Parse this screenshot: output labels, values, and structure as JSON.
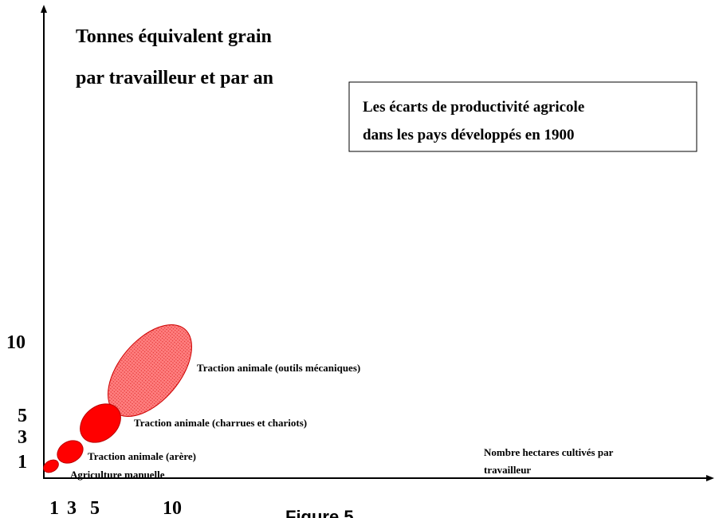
{
  "y_axis": {
    "label": [
      "Tonnes équivalent grain",
      "par travailleur et par an"
    ],
    "ticks": [
      "10",
      "5",
      "3",
      "1"
    ]
  },
  "x_axis": {
    "label": [
      "Nombre hectares cultivés par",
      "travailleur"
    ],
    "ticks": [
      "1",
      "3",
      "5",
      "10"
    ]
  },
  "box": {
    "lines": [
      "Les écarts de productivité agricole",
      "dans les pays développés en 1900"
    ]
  },
  "regions": [
    {
      "label": "Agriculture manuelle"
    },
    {
      "label": "Traction animale (arère)"
    },
    {
      "label": "Traction animale (charrues et chariots)"
    },
    {
      "label": "Traction animale (outils mécaniques)"
    }
  ],
  "caption": "Figure 5"
}
